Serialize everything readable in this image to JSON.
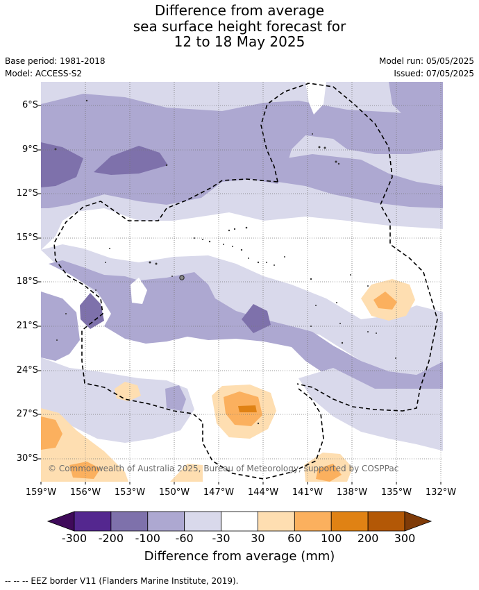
{
  "header": {
    "title_lines": [
      "Difference from average",
      "sea surface height forecast for",
      "12 to 18 May 2025"
    ],
    "base_period": "Base period: 1981-2018",
    "model": "Model: ACCESS-S2",
    "model_run": "Model run: 05/05/2025",
    "issued": "Issued: 07/05/2025"
  },
  "map": {
    "lat_labels": [
      "6°S",
      "9°S",
      "12°S",
      "15°S",
      "18°S",
      "21°S",
      "24°S",
      "27°S",
      "30°S"
    ],
    "lon_labels": [
      "159°W",
      "156°W",
      "153°W",
      "150°W",
      "147°W",
      "144°W",
      "141°W",
      "138°W",
      "135°W",
      "132°W"
    ],
    "copyright": "© Commonwealth of Australia 2025, Bureau of Meteorology, supported by COSPPac"
  },
  "colorbar": {
    "labels": [
      "-300",
      "-200",
      "-100",
      "-60",
      "-30",
      "30",
      "60",
      "100",
      "200",
      "300"
    ],
    "colors": [
      "#3f0a5a",
      "#54278f",
      "#7e71ab",
      "#ada8d1",
      "#d9d9eb",
      "#ffffff",
      "#fedeb1",
      "#fbb05e",
      "#e08214",
      "#b35806",
      "#7f3b08"
    ],
    "title": "Difference from average (mm)"
  },
  "footnote": "--  --  -- EEZ border V11 (Flanders Marine Institute, 2019)."
}
